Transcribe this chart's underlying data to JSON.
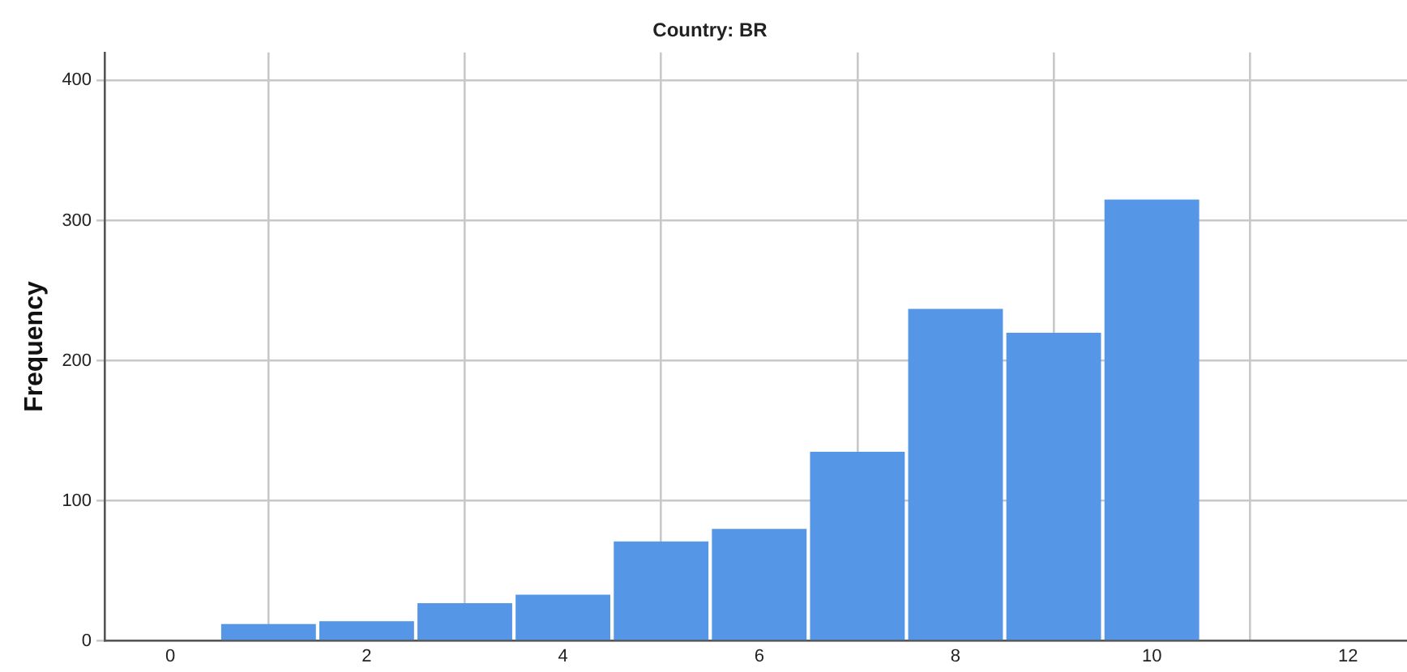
{
  "chart_data": {
    "type": "histogram",
    "title": "Country: BR",
    "ylabel": "Frequency",
    "bins": [
      0.5,
      1.5,
      2.5,
      3.5,
      4.5,
      5.5,
      6.5,
      7.5,
      8.5,
      9.5,
      10.5
    ],
    "values": [
      12,
      14,
      27,
      33,
      71,
      80,
      135,
      237,
      220,
      315
    ],
    "color": "#5596e6",
    "xlim": [
      -0.67,
      12.6
    ],
    "xticks": [
      0,
      2,
      4,
      6,
      8,
      10,
      12
    ],
    "ylim": [
      0,
      420
    ],
    "yticks": [
      0,
      100,
      200,
      300,
      400
    ],
    "grid": true,
    "legend": false
  }
}
